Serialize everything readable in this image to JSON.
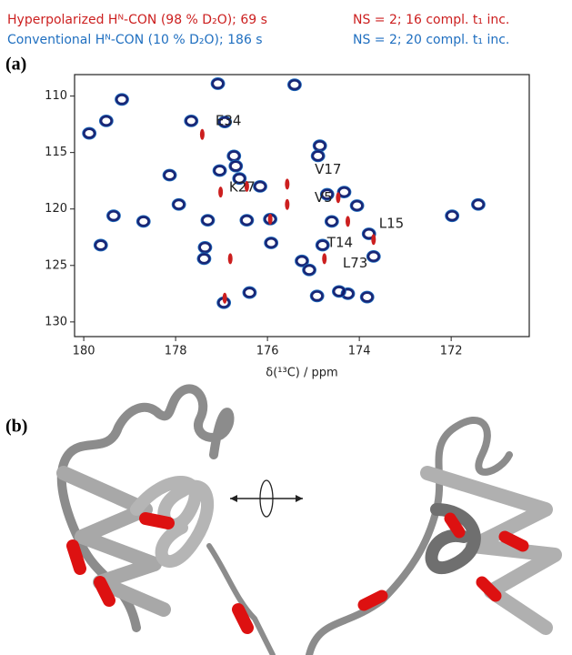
{
  "chart_data": {
    "type": "scatter",
    "panel_label": "(a)",
    "x_label": "δ(¹³C) / ppm",
    "xlim": [
      180.2,
      170.3
    ],
    "xticks": [
      180,
      178,
      176,
      174,
      172
    ],
    "ylim": [
      108.1,
      131.3
    ],
    "yticks": [
      110,
      115,
      120,
      125,
      130
    ],
    "y_reversed": true,
    "series": [
      {
        "name": "Hyperpolarized Hᴺ-CON (98 % D₂O); 69 s",
        "acquisition": "NS = 2; 16 compl. t₁ inc.",
        "color": "#cc1f1f",
        "x": [
          177.42,
          177.02,
          175.57,
          175.57,
          174.46,
          174.25,
          173.69,
          174.76,
          175.94,
          176.93,
          176.81,
          176.45
        ],
        "y": [
          113.4,
          118.5,
          117.8,
          119.6,
          119.0,
          121.1,
          122.7,
          124.4,
          120.9,
          127.9,
          124.4,
          118.0
        ]
      },
      {
        "name": "Conventional Hᴺ-CON (10 % D₂O); 186 s",
        "acquisition": "NS = 2; 20 compl. t₁ inc.",
        "color": "#1f6fc0",
        "x": [
          179.88,
          179.51,
          179.17,
          179.35,
          179.63,
          178.7,
          177.93,
          178.13,
          177.66,
          177.08,
          176.93,
          177.36,
          177.3,
          177.04,
          176.73,
          176.69,
          176.61,
          176.16,
          175.94,
          176.45,
          175.92,
          175.41,
          174.86,
          174.9,
          174.6,
          174.33,
          174.7,
          174.05,
          173.79,
          173.69,
          174.8,
          175.25,
          175.09,
          174.25,
          173.83,
          174.92,
          174.44,
          176.39,
          176.95,
          171.98,
          171.41,
          177.38
        ],
        "y": [
          113.3,
          112.2,
          110.3,
          120.6,
          123.2,
          121.1,
          119.6,
          117.0,
          112.2,
          108.9,
          112.3,
          123.4,
          121.0,
          116.6,
          115.3,
          116.2,
          117.3,
          118.0,
          120.9,
          121.0,
          123.0,
          109.0,
          114.4,
          115.3,
          121.1,
          118.5,
          118.7,
          119.7,
          122.2,
          124.2,
          123.2,
          124.6,
          125.4,
          127.5,
          127.8,
          127.7,
          127.3,
          127.4,
          128.3,
          120.6,
          119.6,
          124.4
        ]
      }
    ],
    "annotations": [
      {
        "text": "E34",
        "x": 176.85,
        "y": 112.2
      },
      {
        "text": "V17",
        "x": 174.68,
        "y": 116.5
      },
      {
        "text": "K27",
        "x": 176.55,
        "y": 118.1
      },
      {
        "text": "V5",
        "x": 174.78,
        "y": 119.0
      },
      {
        "text": "L15",
        "x": 173.3,
        "y": 121.3
      },
      {
        "text": "T14",
        "x": 174.42,
        "y": 123.0
      },
      {
        "text": "L73",
        "x": 174.09,
        "y": 124.8
      }
    ]
  },
  "panel_b": {
    "label": "(b)"
  }
}
